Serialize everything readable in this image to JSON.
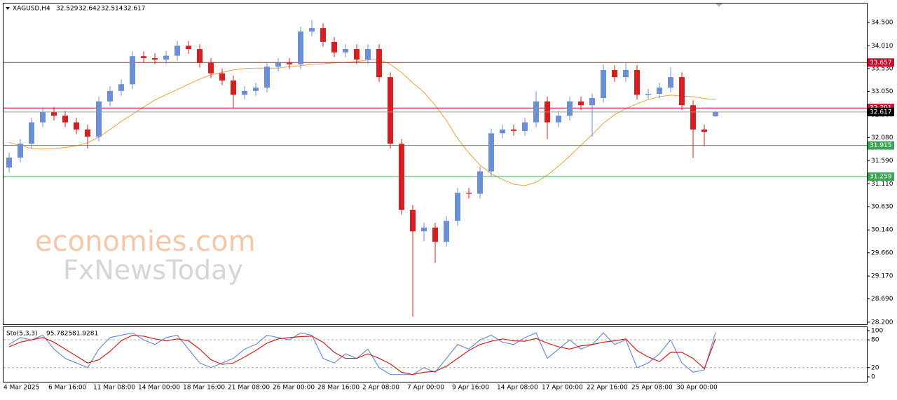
{
  "chart_data": [
    {
      "type": "candlestick",
      "symbol": "XAGUSD,H4",
      "categories": [
        "4 Mar 2025",
        null,
        null,
        null,
        "6 Mar 16:00",
        null,
        null,
        null,
        "11 Mar 08:00",
        null,
        null,
        null,
        "14 Mar 00:00",
        null,
        null,
        null,
        "18 Mar 16:00",
        null,
        null,
        null,
        "21 Mar 08:00",
        null,
        null,
        null,
        "26 Mar 00:00",
        null,
        null,
        null,
        "28 Mar 16:00",
        null,
        null,
        null,
        "2 Apr 08:00",
        null,
        null,
        null,
        "7 Apr 00:00",
        null,
        null,
        null,
        "9 Apr 16:00",
        null,
        null,
        null,
        "14 Apr 08:00",
        null,
        null,
        null,
        "17 Apr 00:00",
        null,
        null,
        null,
        "22 Apr 16:00",
        null,
        null,
        null,
        "25 Apr 08:00",
        null,
        null,
        null,
        "30 Apr 00:00",
        null,
        null,
        null
      ],
      "open": [
        31.45,
        31.66,
        31.95,
        32.4,
        32.62,
        32.54,
        32.4,
        32.25,
        32.1,
        32.84,
        33.06,
        33.2,
        33.79,
        33.75,
        33.72,
        33.8,
        34.01,
        33.94,
        33.65,
        33.43,
        33.28,
        32.98,
        33.06,
        33.13,
        33.57,
        33.65,
        33.62,
        34.31,
        34.38,
        34.09,
        33.87,
        33.94,
        33.72,
        33.94,
        33.35,
        31.95,
        30.56,
        30.11,
        30.19,
        29.89,
        30.33,
        30.92,
        30.9,
        31.37,
        32.17,
        32.25,
        32.22,
        32.4,
        32.84,
        32.4,
        32.54,
        32.84,
        32.76,
        32.91,
        33.5,
        33.35,
        33.5,
        32.98,
        33.0,
        33.13,
        33.35,
        32.76,
        32.25,
        32.529
      ],
      "high": [
        31.76,
        32.05,
        32.5,
        32.72,
        32.72,
        32.64,
        32.5,
        32.35,
        32.94,
        33.16,
        33.3,
        33.89,
        33.89,
        33.85,
        33.9,
        34.11,
        34.11,
        34.04,
        33.75,
        33.53,
        33.38,
        33.16,
        33.23,
        33.67,
        33.75,
        33.75,
        34.41,
        34.55,
        34.48,
        34.19,
        34.04,
        34.04,
        34.04,
        34.04,
        33.45,
        32.05,
        30.66,
        30.29,
        30.29,
        30.43,
        31.02,
        31.02,
        31.47,
        32.27,
        32.35,
        32.35,
        32.5,
        33.05,
        32.94,
        32.64,
        32.94,
        32.94,
        33.01,
        33.62,
        33.6,
        33.65,
        33.6,
        33.1,
        33.23,
        33.55,
        33.45,
        32.86,
        32.35,
        32.642
      ],
      "low": [
        31.35,
        31.56,
        31.85,
        32.3,
        32.44,
        32.3,
        32.15,
        31.85,
        32.0,
        32.74,
        32.96,
        33.1,
        33.65,
        33.62,
        33.62,
        33.7,
        33.84,
        33.55,
        33.33,
        33.18,
        32.7,
        32.88,
        32.96,
        33.03,
        33.47,
        33.52,
        33.52,
        34.21,
        33.99,
        33.77,
        33.77,
        33.62,
        33.62,
        33.25,
        31.85,
        30.46,
        28.32,
        29.9,
        29.45,
        29.79,
        30.23,
        30.8,
        30.8,
        31.27,
        32.07,
        32.12,
        32.12,
        32.3,
        32.05,
        32.3,
        32.44,
        32.66,
        32.1,
        32.81,
        33.25,
        33.25,
        32.88,
        32.9,
        32.9,
        33.03,
        32.66,
        31.65,
        31.9,
        32.514
      ],
      "close": [
        31.66,
        31.95,
        32.4,
        32.62,
        32.54,
        32.4,
        32.25,
        32.1,
        32.84,
        33.06,
        33.2,
        33.79,
        33.75,
        33.72,
        33.8,
        34.01,
        33.94,
        33.65,
        33.43,
        33.28,
        32.98,
        33.06,
        33.13,
        33.57,
        33.65,
        33.62,
        34.31,
        34.38,
        34.09,
        33.87,
        33.94,
        33.72,
        33.94,
        33.35,
        31.95,
        30.56,
        30.11,
        30.19,
        29.89,
        30.33,
        30.92,
        30.9,
        31.37,
        32.17,
        32.25,
        32.22,
        32.4,
        32.84,
        32.4,
        32.54,
        32.84,
        32.76,
        32.91,
        33.5,
        33.35,
        33.5,
        32.98,
        33.0,
        33.13,
        33.35,
        32.76,
        32.25,
        32.2,
        32.617
      ],
      "up_color": "#6b8fd6",
      "down_color": "#d81e1e",
      "ma": {
        "color": "#f0a040",
        "values": [
          31.98,
          31.91,
          31.85,
          31.84,
          31.85,
          31.87,
          31.91,
          31.97,
          32.09,
          32.25,
          32.42,
          32.57,
          32.72,
          32.87,
          32.98,
          33.09,
          33.2,
          33.31,
          33.4,
          33.45,
          33.5,
          33.53,
          33.54,
          33.54,
          33.54,
          33.57,
          33.59,
          33.62,
          33.63,
          33.65,
          33.66,
          33.68,
          33.71,
          33.72,
          33.62,
          33.45,
          33.23,
          33.03,
          32.76,
          32.44,
          32.06,
          31.76,
          31.5,
          31.32,
          31.2,
          31.1,
          31.07,
          31.14,
          31.29,
          31.48,
          31.69,
          31.92,
          32.14,
          32.38,
          32.56,
          32.69,
          32.79,
          32.88,
          32.94,
          32.97,
          32.95,
          32.94,
          32.9,
          32.88
        ]
      },
      "ylim": [
        28.156,
        34.912
      ],
      "yticks": [
        {
          "value": 34.5,
          "label": "34.500"
        },
        {
          "value": 34.01,
          "label": "34.010"
        },
        {
          "value": 33.53,
          "label": "33.530"
        },
        {
          "value": 33.05,
          "label": "33.050"
        },
        {
          "value": 32.56,
          "label": "32.560"
        },
        {
          "value": 32.08,
          "label": "32.080"
        },
        {
          "value": 31.59,
          "label": "31.590"
        },
        {
          "value": 31.11,
          "label": "31.110"
        },
        {
          "value": 30.63,
          "label": "30.630"
        },
        {
          "value": 30.14,
          "label": "30.140"
        },
        {
          "value": 29.66,
          "label": "29.660"
        },
        {
          "value": 29.17,
          "label": "29.170"
        },
        {
          "value": 28.69,
          "label": "28.690"
        },
        {
          "value": 28.2,
          "label": "28.200"
        }
      ],
      "levels": [
        {
          "value": 33.657,
          "color": "#c8102e"
        },
        {
          "value": 32.701,
          "color": "#c8102e"
        },
        {
          "value": 31.915,
          "color": "#3aa655"
        },
        {
          "value": 31.259,
          "color": "#3aa655"
        }
      ],
      "last_price_color": "#000000",
      "watermark": [
        "economies.com",
        "FxNewsToday"
      ]
    },
    {
      "type": "line",
      "title": "Sto(5,3,3)",
      "series": [
        {
          "color": "#6b8fd6",
          "values": [
            70,
            85,
            80,
            90,
            60,
            40,
            30,
            20,
            60,
            85,
            90,
            95,
            80,
            70,
            85,
            90,
            60,
            30,
            20,
            30,
            40,
            60,
            70,
            90,
            85,
            80,
            95,
            90,
            40,
            30,
            50,
            40,
            60,
            20,
            5,
            5,
            5,
            20,
            10,
            40,
            70,
            60,
            80,
            90,
            75,
            70,
            85,
            95,
            40,
            60,
            80,
            60,
            70,
            95,
            70,
            80,
            20,
            30,
            50,
            80,
            30,
            10,
            15,
            95.7825
          ]
        },
        {
          "color": "#d81e1e",
          "values": [
            65,
            75,
            80,
            85,
            75,
            60,
            45,
            30,
            37,
            55,
            78,
            90,
            88,
            82,
            78,
            82,
            78,
            60,
            37,
            27,
            30,
            43,
            57,
            73,
            82,
            85,
            87,
            88,
            75,
            53,
            40,
            40,
            50,
            40,
            28,
            10,
            5,
            10,
            12,
            23,
            40,
            57,
            70,
            77,
            82,
            78,
            77,
            83,
            73,
            65,
            60,
            67,
            70,
            75,
            78,
            82,
            57,
            43,
            33,
            53,
            53,
            40,
            18,
            81.9281
          ]
        }
      ],
      "ylim": [
        -10.6,
        109
      ],
      "yticks": [
        100,
        80,
        20,
        0
      ],
      "levels": [
        80,
        20
      ]
    }
  ]
}
